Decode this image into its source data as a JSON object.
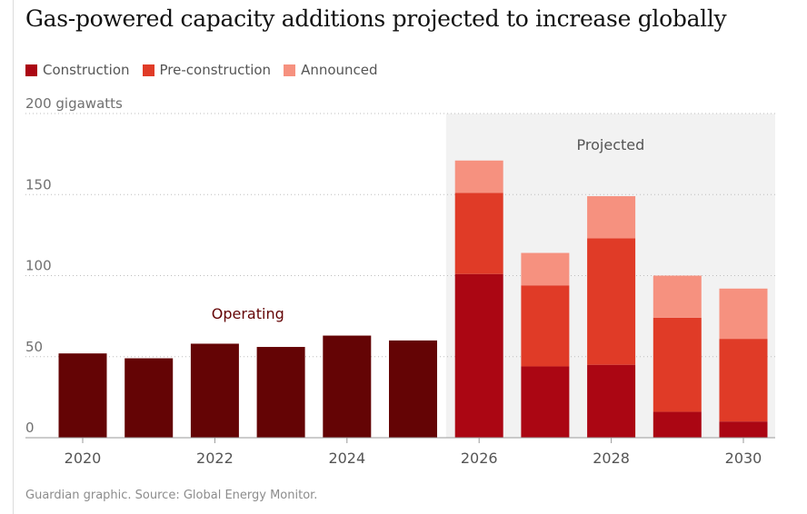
{
  "header": {
    "title": "Gas-powered capacity additions projected to increase globally"
  },
  "legend": {
    "items": [
      {
        "label": "Construction",
        "color": "#ab0613"
      },
      {
        "label": "Pre-construction",
        "color": "#e03b27"
      },
      {
        "label": "Announced",
        "color": "#f6917f"
      }
    ]
  },
  "footer": {
    "source": "Guardian graphic. Source: Global Energy Monitor."
  },
  "chart_data": {
    "type": "bar",
    "stacked": true,
    "title": "Gas-powered capacity additions projected to increase globally",
    "ylabel": "200 gigawatts",
    "ylim": [
      0,
      200
    ],
    "yticks": [
      0,
      50,
      100,
      150
    ],
    "ytick_labels": [
      "0",
      "50",
      "100",
      "150"
    ],
    "categories": [
      "2020",
      "2021",
      "2022",
      "2023",
      "2024",
      "2025",
      "2026",
      "2027",
      "2028",
      "2029",
      "2030"
    ],
    "xtick_labels": [
      "2020",
      "",
      "2022",
      "",
      "2024",
      "",
      "2026",
      "",
      "2028",
      "",
      "2030"
    ],
    "series": [
      {
        "name": "Operating",
        "color": "#640405",
        "values": [
          52,
          49,
          58,
          56,
          63,
          60,
          0,
          0,
          0,
          0,
          0
        ]
      },
      {
        "name": "Construction",
        "color": "#ab0613",
        "values": [
          0,
          0,
          0,
          0,
          0,
          0,
          101,
          44,
          45,
          16,
          10
        ]
      },
      {
        "name": "Pre-construction",
        "color": "#e03b27",
        "values": [
          0,
          0,
          0,
          0,
          0,
          0,
          50,
          50,
          78,
          58,
          51
        ]
      },
      {
        "name": "Announced",
        "color": "#f6917f",
        "values": [
          0,
          0,
          0,
          0,
          0,
          0,
          20,
          20,
          26,
          26,
          31
        ]
      }
    ],
    "annotations": [
      {
        "text": "Operating",
        "color": "#640405"
      },
      {
        "text": "Projected",
        "color": "#555555"
      }
    ],
    "projected_region": {
      "from": "2026",
      "to": "2030",
      "color": "#f2f2f2"
    },
    "grid": true,
    "legend_position": "top-left"
  }
}
